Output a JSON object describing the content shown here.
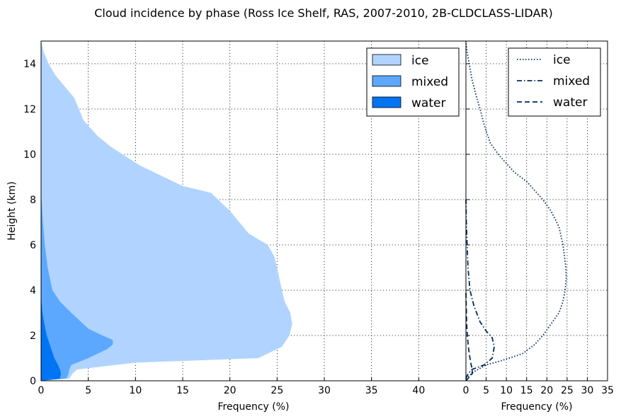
{
  "colors": {
    "ice": "#b0d4ff",
    "mixed": "#5ca8ff",
    "water": "#0074f2",
    "line": "#002b5e"
  },
  "chart_data": [
    {
      "type": "area",
      "title": "Cloud incidence by phase (Ross Ice Shelf, RAS, 2007-2010, 2B-CLDCLASS-LIDAR)",
      "xlabel": "Frequency (%)",
      "ylabel": "Height (km)",
      "xlim": [
        0,
        45
      ],
      "ylim": [
        0,
        15
      ],
      "xticks": [
        "0",
        "5",
        "10",
        "15",
        "20",
        "25",
        "30",
        "35",
        "40"
      ],
      "yticks": [
        "0",
        "2",
        "4",
        "6",
        "8",
        "10",
        "12",
        "14"
      ],
      "grid": true,
      "stacked": true,
      "legend": "top-right",
      "series": [
        {
          "name": "water",
          "points": [
            [
              0,
              0
            ],
            [
              2.0,
              0.1
            ],
            [
              2.1,
              0.3
            ],
            [
              2.0,
              0.5
            ],
            [
              1.8,
              0.7
            ],
            [
              1.4,
              1.0
            ],
            [
              1.0,
              1.5
            ],
            [
              0.6,
              2.0
            ],
            [
              0.35,
              2.5
            ],
            [
              0.15,
              3.0
            ],
            [
              0.05,
              3.5
            ],
            [
              0,
              4.0
            ]
          ]
        },
        {
          "name": "mixed",
          "points": [
            [
              0,
              0
            ],
            [
              2.7,
              0.1
            ],
            [
              2.9,
              0.3
            ],
            [
              3.0,
              0.5
            ],
            [
              3.2,
              0.7
            ],
            [
              5.0,
              1.0
            ],
            [
              7.0,
              1.4
            ],
            [
              7.6,
              1.6
            ],
            [
              7.6,
              1.8
            ],
            [
              6.5,
              2.0
            ],
            [
              5.0,
              2.3
            ],
            [
              3.2,
              3.0
            ],
            [
              2.0,
              3.5
            ],
            [
              1.2,
              4.0
            ],
            [
              0.7,
              5.0
            ],
            [
              0.4,
              6.0
            ],
            [
              0.2,
              7.0
            ],
            [
              0.05,
              8.0
            ],
            [
              0,
              9.0
            ]
          ]
        },
        {
          "name": "ice",
          "points": [
            [
              0,
              0
            ],
            [
              3.0,
              0.1
            ],
            [
              3.3,
              0.3
            ],
            [
              3.8,
              0.5
            ],
            [
              10.0,
              0.8
            ],
            [
              23.0,
              1.0
            ],
            [
              25.5,
              1.5
            ],
            [
              26.3,
              2.0
            ],
            [
              26.6,
              2.5
            ],
            [
              26.4,
              3.0
            ],
            [
              25.8,
              3.5
            ],
            [
              25.5,
              4.0
            ],
            [
              25.0,
              5.0
            ],
            [
              24.7,
              5.5
            ],
            [
              24.0,
              6.0
            ],
            [
              22.0,
              6.5
            ],
            [
              20.0,
              7.5
            ],
            [
              18.0,
              8.3
            ],
            [
              15.0,
              8.6
            ],
            [
              13.0,
              9.0
            ],
            [
              10.5,
              9.5
            ],
            [
              7.5,
              10.3
            ],
            [
              6.0,
              10.8
            ],
            [
              4.5,
              11.5
            ],
            [
              3.5,
              12.5
            ],
            [
              2.5,
              13.0
            ],
            [
              1.5,
              13.5
            ],
            [
              0.8,
              14.0
            ],
            [
              0.3,
              14.5
            ],
            [
              0,
              15.0
            ]
          ]
        }
      ]
    },
    {
      "type": "line",
      "xlabel": "Frequency (%)",
      "xlim": [
        0,
        35
      ],
      "ylim": [
        0,
        15
      ],
      "xticks": [
        "0",
        "5",
        "10",
        "15",
        "20",
        "25",
        "30",
        "35"
      ],
      "grid": true,
      "legend": "top-right",
      "series": [
        {
          "name": "ice",
          "style": "dotted",
          "points": [
            [
              0,
              0.1
            ],
            [
              2.0,
              0.4
            ],
            [
              5.0,
              0.7
            ],
            [
              9.0,
              0.9
            ],
            [
              14.0,
              1.2
            ],
            [
              17.0,
              1.6
            ],
            [
              19.0,
              2.0
            ],
            [
              21.0,
              2.5
            ],
            [
              23.0,
              3.0
            ],
            [
              24.0,
              3.5
            ],
            [
              24.5,
              4.0
            ],
            [
              24.8,
              4.5
            ],
            [
              24.7,
              5.0
            ],
            [
              24.0,
              6.0
            ],
            [
              23.0,
              6.8
            ],
            [
              21.0,
              7.5
            ],
            [
              19.0,
              8.0
            ],
            [
              17.0,
              8.4
            ],
            [
              15.0,
              8.8
            ],
            [
              12.0,
              9.2
            ],
            [
              10.0,
              9.6
            ],
            [
              8.0,
              10.0
            ],
            [
              6.0,
              10.5
            ],
            [
              4.5,
              11.3
            ],
            [
              3.5,
              12.0
            ],
            [
              2.5,
              12.6
            ],
            [
              1.5,
              13.3
            ],
            [
              0.8,
              14.0
            ],
            [
              0.3,
              14.5
            ],
            [
              0,
              15.0
            ]
          ]
        },
        {
          "name": "mixed",
          "style": "dashdot",
          "points": [
            [
              0,
              0.1
            ],
            [
              0.5,
              0.3
            ],
            [
              1.5,
              0.5
            ],
            [
              4.5,
              0.7
            ],
            [
              6.5,
              1.0
            ],
            [
              7.0,
              1.5
            ],
            [
              6.5,
              1.9
            ],
            [
              5.0,
              2.2
            ],
            [
              3.5,
              2.6
            ],
            [
              2.0,
              3.3
            ],
            [
              1.0,
              4.0
            ],
            [
              0.5,
              5.0
            ],
            [
              0.3,
              6.0
            ],
            [
              0.1,
              7.0
            ],
            [
              0,
              8.0
            ]
          ]
        },
        {
          "name": "water",
          "style": "dashed",
          "points": [
            [
              0,
              0
            ],
            [
              0.5,
              0.1
            ],
            [
              1.5,
              0.3
            ],
            [
              1.6,
              0.5
            ],
            [
              1.3,
              0.7
            ],
            [
              1.0,
              1.0
            ],
            [
              0.6,
              1.5
            ],
            [
              0.35,
              2.0
            ],
            [
              0.2,
              2.5
            ],
            [
              0.05,
              3.5
            ],
            [
              0,
              4.0
            ]
          ]
        }
      ]
    }
  ]
}
